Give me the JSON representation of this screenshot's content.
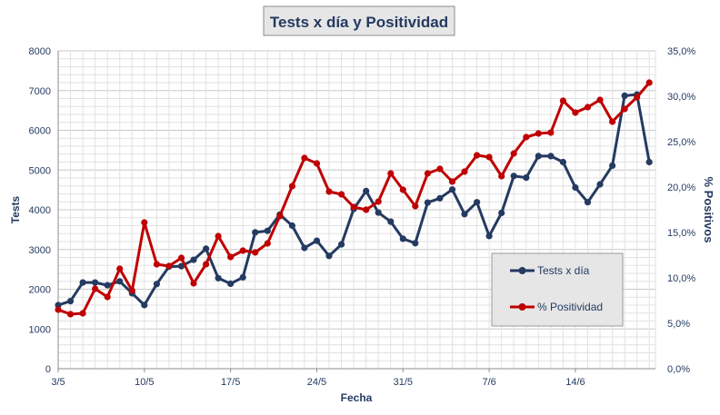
{
  "chart_data": {
    "type": "line",
    "title": "Tests x día y Positividad",
    "xlabel": "Fecha",
    "ylabel_left": "Tests",
    "ylabel_right": "% Positivos",
    "y_left_range": [
      0,
      8000
    ],
    "y_left_ticks": [
      "0",
      "1000",
      "2000",
      "3000",
      "4000",
      "5000",
      "6000",
      "7000",
      "8000"
    ],
    "y_right_range": [
      0,
      35
    ],
    "y_right_ticks": [
      "0,0%",
      "5,0%",
      "10,0%",
      "15,0%",
      "20,0%",
      "25,0%",
      "30,0%",
      "35,0%"
    ],
    "x_ticks": [
      {
        "index": 0,
        "label": "3/5"
      },
      {
        "index": 7,
        "label": "10/5"
      },
      {
        "index": 14,
        "label": "17/5"
      },
      {
        "index": 21,
        "label": "24/5"
      },
      {
        "index": 28,
        "label": "31/5"
      },
      {
        "index": 35,
        "label": "7/6"
      },
      {
        "index": 42,
        "label": "14/6"
      }
    ],
    "grid": true,
    "legend_position": "bottom-right",
    "series": [
      {
        "name": "Tests x día",
        "axis": "left",
        "color": "#243a61",
        "values": [
          1600,
          1700,
          2170,
          2170,
          2100,
          2200,
          1900,
          1600,
          2130,
          2570,
          2580,
          2740,
          3020,
          2280,
          2140,
          2300,
          3430,
          3470,
          3880,
          3600,
          3040,
          3220,
          2840,
          3130,
          4020,
          4470,
          3930,
          3700,
          3270,
          3160,
          4180,
          4290,
          4510,
          3890,
          4190,
          3340,
          3920,
          4850,
          4810,
          5350,
          5350,
          5200,
          4560,
          4190,
          4640,
          5110,
          6870,
          6900,
          5200
        ]
      },
      {
        "name": "% Positividad",
        "axis": "right",
        "color": "#c00000",
        "values": [
          6.5,
          6.0,
          6.1,
          8.8,
          7.9,
          11.0,
          8.6,
          16.1,
          11.5,
          11.3,
          12.2,
          9.4,
          11.5,
          14.6,
          12.3,
          13.0,
          12.8,
          13.8,
          16.8,
          20.1,
          23.2,
          22.6,
          19.5,
          19.2,
          17.8,
          17.5,
          18.4,
          21.5,
          19.7,
          17.9,
          21.5,
          22.0,
          20.6,
          21.7,
          23.5,
          23.3,
          21.2,
          23.7,
          25.5,
          25.9,
          26.0,
          29.5,
          28.2,
          28.8,
          29.6,
          27.2,
          28.6,
          29.9,
          31.5
        ]
      }
    ]
  }
}
